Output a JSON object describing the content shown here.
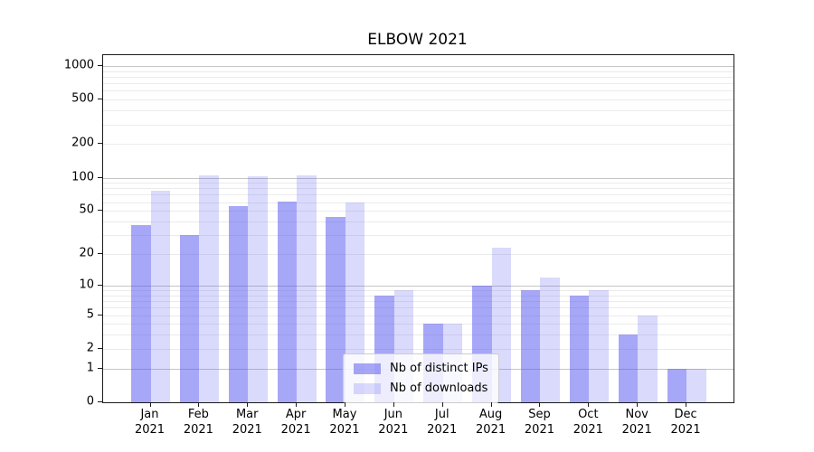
{
  "figure": {
    "background": "#ffffff",
    "axis_color": "#1a1a1a",
    "major_grid_color": "#c6c6c6",
    "minor_grid_color": "#ebebeb"
  },
  "chart_data": {
    "type": "bar",
    "title": "ELBOW 2021",
    "categories": [
      "Jan 2021",
      "Feb 2021",
      "Mar 2021",
      "Apr 2021",
      "May 2021",
      "Jun 2021",
      "Jul 2021",
      "Aug 2021",
      "Sep 2021",
      "Oct 2021",
      "Nov 2021",
      "Dec 2021"
    ],
    "series": [
      {
        "name": "Nb of distinct IPs",
        "values": [
          37,
          30,
          55,
          61,
          44,
          8,
          4,
          10,
          9,
          8,
          3,
          1
        ],
        "fill": "rgba(80,80,240,0.50)"
      },
      {
        "name": "Nb of downloads",
        "values": [
          76,
          105,
          102,
          104,
          60,
          9,
          4,
          23,
          12,
          9,
          5,
          1
        ],
        "fill": "rgba(80,80,240,0.21)"
      }
    ],
    "xlabel": "",
    "ylabel": "",
    "y_scale": "log10(1+v)",
    "y_ticks": [
      0,
      1,
      2,
      5,
      10,
      20,
      50,
      100,
      200,
      500,
      1000
    ],
    "y_minor_grid": [
      2,
      3,
      4,
      5,
      6,
      7,
      8,
      9,
      20,
      30,
      40,
      50,
      60,
      70,
      80,
      90,
      200,
      300,
      400,
      500,
      600,
      700,
      800,
      900
    ],
    "y_major_grid": [
      1,
      10,
      100,
      1000
    ],
    "ylim": [
      0,
      1250
    ],
    "grid": true,
    "legend_position": "lower center"
  }
}
